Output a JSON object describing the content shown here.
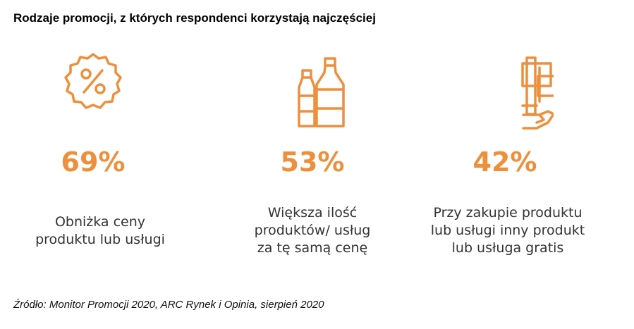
{
  "title": "Rodzaje promocji, z których respondenci korzystają najczęściej",
  "accent_color": "#ee8f3b",
  "chart_data": {
    "type": "infographic",
    "title": "Rodzaje promocji, z których respondenci korzystają najczęściej",
    "unit": "%",
    "items": [
      {
        "icon": "percent-badge-icon",
        "value": 69,
        "label": "69%",
        "desc_lines": [
          "Obniżka ceny",
          "produktu lub usługi"
        ]
      },
      {
        "icon": "bottles-icon",
        "value": 53,
        "label": "53%",
        "desc_lines": [
          "Większa ilość",
          "produktów/ usług",
          "za tę samą cenę"
        ]
      },
      {
        "icon": "hand-products-icon",
        "value": 42,
        "label": "42%",
        "desc_lines": [
          "Przy zakupie produktu",
          "lub usługi inny produkt",
          "lub usługa gratis"
        ]
      }
    ]
  },
  "source": "Źródło: Monitor Promocji 2020, ARC Rynek i Opinia, sierpień 2020"
}
